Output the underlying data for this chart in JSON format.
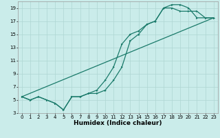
{
  "xlabel": "Humidex (Indice chaleur)",
  "bg_color": "#caecea",
  "grid_color": "#aed6d2",
  "line_color": "#1a7a6a",
  "xlim": [
    -0.5,
    23.5
  ],
  "ylim": [
    3,
    20
  ],
  "xticks": [
    0,
    1,
    2,
    3,
    4,
    5,
    6,
    7,
    8,
    9,
    10,
    11,
    12,
    13,
    14,
    15,
    16,
    17,
    18,
    19,
    20,
    21,
    22,
    23
  ],
  "yticks": [
    3,
    5,
    7,
    9,
    11,
    13,
    15,
    17,
    19
  ],
  "line1_x": [
    0,
    1,
    2,
    3,
    4,
    5,
    6,
    7,
    8,
    9,
    10,
    11,
    12,
    13,
    14,
    15,
    16,
    17,
    18,
    19,
    20,
    21,
    22,
    23
  ],
  "line1_y": [
    5.5,
    5.0,
    5.5,
    5.0,
    4.5,
    3.5,
    5.5,
    5.5,
    6.0,
    6.0,
    6.5,
    8.0,
    10.0,
    14.0,
    15.0,
    16.5,
    17.0,
    19.0,
    19.0,
    18.5,
    18.5,
    18.5,
    17.5,
    17.5
  ],
  "line2_x": [
    0,
    1,
    2,
    3,
    4,
    5,
    6,
    7,
    8,
    9,
    10,
    11,
    12,
    13,
    14,
    15,
    16,
    17,
    18,
    19,
    20,
    21,
    22,
    23
  ],
  "line2_y": [
    5.5,
    5.0,
    5.5,
    5.0,
    4.5,
    3.5,
    5.5,
    5.5,
    6.0,
    6.5,
    8.0,
    10.0,
    13.5,
    15.0,
    15.5,
    16.5,
    17.0,
    19.0,
    19.5,
    19.5,
    19.0,
    17.5,
    17.5,
    17.5
  ],
  "line3_x": [
    0,
    23
  ],
  "line3_y": [
    5.5,
    17.5
  ],
  "marker_size": 2.2,
  "linewidth": 0.9,
  "tick_fontsize": 5.0,
  "xlabel_fontsize": 6.5
}
